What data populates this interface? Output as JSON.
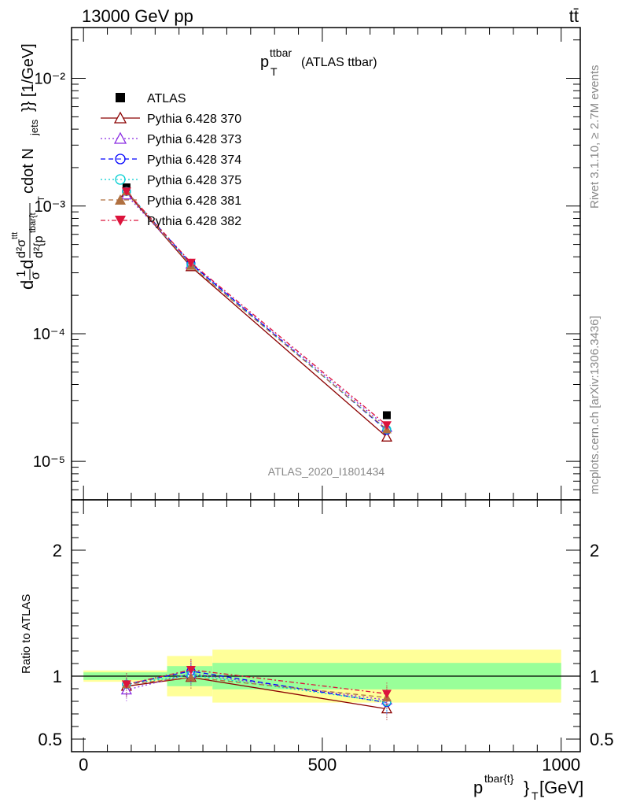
{
  "header": {
    "left": "13000 GeV pp",
    "right": "tt̄"
  },
  "side_labels": {
    "rivet": "Rivet 3.1.10, ≥ 2.7M events",
    "mcplots": "mcplots.cern.ch [arXiv:1306.3436]"
  },
  "watermark": "ATLAS_2020_I1801434",
  "plot_title": {
    "main": "p",
    "sup": "ttbar",
    "sub": "T",
    "rest": "(ATLAS ttbar)"
  },
  "y_label_main": {
    "frac": "d",
    "one": "1",
    "sigma": "σ",
    "d_sigma": "d",
    "rest": "d²σ",
    "sup_ttt": "ttt",
    "denom": "d²{p",
    "denom_sup": "tbar{t",
    "denom_sub": "T",
    "cdot": "cdot N",
    "jets": "jets",
    "tail": "}} [1/GeV]"
  },
  "y_label_ratio": "Ratio to ATLAS",
  "x_label": {
    "p": "p",
    "sup": "tbar{t}",
    "close": "}",
    "sub": "T",
    "unit": "[GeV]"
  },
  "colors": {
    "atlas": "#000000",
    "p370": "#8b0000",
    "p373": "#8a2be2",
    "p374": "#0000ff",
    "p375": "#00ced1",
    "p381": "#b07040",
    "p382": "#dc143c",
    "band_inner": "#99ff99",
    "band_outer": "#ffff99"
  },
  "chart_data": [
    {
      "type": "line",
      "panel": "main",
      "x": [
        90,
        225,
        635
      ],
      "ylim": [
        5e-06,
        0.025
      ],
      "ylog": true,
      "y_ticks": [
        "10⁻⁵",
        "10⁻⁴",
        "10⁻³",
        "10⁻²"
      ],
      "series": [
        {
          "name": "ATLAS",
          "values": [
            0.0014,
            0.00035,
            2.3e-05
          ],
          "marker": "square-filled",
          "color": "#000000",
          "dash": "none"
        },
        {
          "name": "Pythia 6.428 370",
          "values": [
            0.00128,
            0.000335,
            1.55e-05
          ],
          "marker": "triangle-open",
          "color": "#8b0000",
          "dash": "solid"
        },
        {
          "name": "Pythia 6.428 373",
          "values": [
            0.00122,
            0.00035,
            1.85e-05
          ],
          "marker": "triangle-open",
          "color": "#8a2be2",
          "dash": "dotted"
        },
        {
          "name": "Pythia 6.428 374",
          "values": [
            0.0013,
            0.000355,
            1.75e-05
          ],
          "marker": "circle-open",
          "color": "#0000ff",
          "dash": "dashed"
        },
        {
          "name": "Pythia 6.428 375",
          "values": [
            0.0013,
            0.000345,
            1.78e-05
          ],
          "marker": "circle-open",
          "color": "#00ced1",
          "dash": "dotted"
        },
        {
          "name": "Pythia 6.428 381",
          "values": [
            0.0013,
            0.00034,
            1.78e-05
          ],
          "marker": "triangle-filled",
          "color": "#b07040",
          "dash": "dashed"
        },
        {
          "name": "Pythia 6.428 382",
          "values": [
            0.0013,
            0.00036,
            1.92e-05
          ],
          "marker": "triangle-down-filled",
          "color": "#dc143c",
          "dash": "dashdot"
        }
      ]
    },
    {
      "type": "line",
      "panel": "ratio",
      "x": [
        90,
        225,
        635
      ],
      "ylim": [
        0.4,
        2.4
      ],
      "y_ticks": [
        "0.5",
        "1",
        "2"
      ],
      "x_ticks": [
        "0",
        "500",
        "1000"
      ],
      "xlim": [
        -25,
        1040
      ],
      "bands": [
        {
          "x0": 0,
          "x1": 175,
          "inner": [
            0.97,
            1.03
          ],
          "outer": [
            0.955,
            1.045
          ]
        },
        {
          "x0": 175,
          "x1": 270,
          "inner": [
            0.92,
            1.08
          ],
          "outer": [
            0.84,
            1.16
          ]
        },
        {
          "x0": 270,
          "x1": 1000,
          "inner": [
            0.895,
            1.105
          ],
          "outer": [
            0.79,
            1.21
          ]
        }
      ],
      "series": [
        {
          "name": "Pythia 6.428 370",
          "values": [
            0.92,
            0.99,
            0.74
          ],
          "color": "#8b0000"
        },
        {
          "name": "Pythia 6.428 373",
          "values": [
            0.89,
            1.02,
            0.81
          ],
          "color": "#8a2be2"
        },
        {
          "name": "Pythia 6.428 374",
          "values": [
            0.935,
            1.04,
            0.79
          ],
          "color": "#0000ff"
        },
        {
          "name": "Pythia 6.428 375",
          "values": [
            0.935,
            1.01,
            0.795
          ],
          "color": "#00ced1"
        },
        {
          "name": "Pythia 6.428 381",
          "values": [
            0.935,
            0.99,
            0.83
          ],
          "color": "#b07040"
        },
        {
          "name": "Pythia 6.428 382",
          "values": [
            0.935,
            1.05,
            0.86
          ],
          "color": "#dc143c"
        }
      ]
    }
  ]
}
